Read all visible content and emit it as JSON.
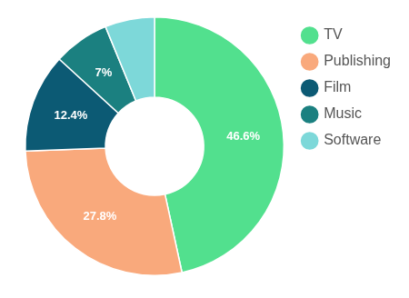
{
  "chart_data": {
    "type": "doughnut",
    "categories": [
      "TV",
      "Publishing",
      "Film",
      "Music",
      "Software"
    ],
    "values": [
      46.6,
      27.8,
      12.4,
      7,
      6.2
    ],
    "value_labels": [
      "46.6%",
      "27.8%",
      "12.4%",
      "7%",
      null
    ],
    "colors": [
      "#52e08e",
      "#f9a97c",
      "#0c5a74",
      "#1b8080",
      "#7dd8d9"
    ],
    "data_labels": true,
    "legend": "right"
  }
}
